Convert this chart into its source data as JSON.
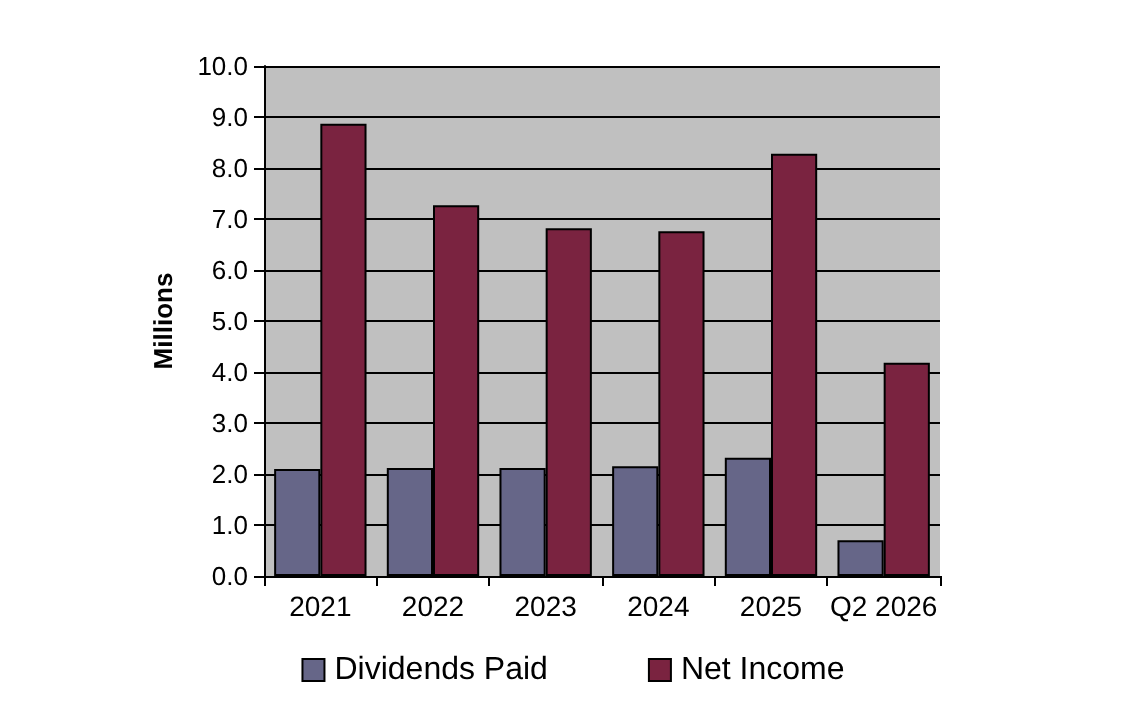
{
  "chart_data": {
    "type": "bar",
    "ylabel": "Millions",
    "categories": [
      "2021",
      "2022",
      "2023",
      "2024",
      "2025",
      "Q2 2026"
    ],
    "series": [
      {
        "name": "Dividends Paid",
        "color": "#666688",
        "values": [
          2.1,
          2.12,
          2.12,
          2.15,
          2.32,
          0.7
        ]
      },
      {
        "name": "Net Income",
        "color": "#7a2340",
        "values": [
          8.87,
          7.27,
          6.82,
          6.76,
          8.28,
          4.18
        ]
      }
    ],
    "ylim": [
      0,
      10
    ],
    "yticks": [
      {
        "value": 0,
        "label": "0.0"
      },
      {
        "value": 1,
        "label": "1.0"
      },
      {
        "value": 2,
        "label": "2.0"
      },
      {
        "value": 3,
        "label": "3.0"
      },
      {
        "value": 4,
        "label": "4.0"
      },
      {
        "value": 5,
        "label": "5.0"
      },
      {
        "value": 6,
        "label": "6.0"
      },
      {
        "value": 7,
        "label": "7.0"
      },
      {
        "value": 8,
        "label": "8.0"
      },
      {
        "value": 9,
        "label": "9.0"
      },
      {
        "value": 10,
        "label": "10.0"
      }
    ],
    "grid": "y",
    "legend": "bottom"
  }
}
